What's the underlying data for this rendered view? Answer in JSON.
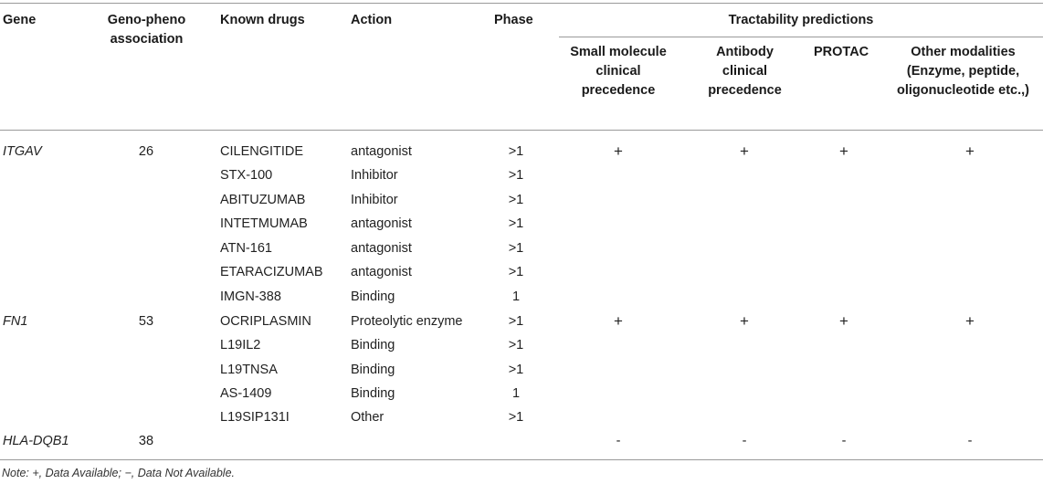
{
  "headers": {
    "gene": "Gene",
    "geno_pheno": "Geno-pheno association",
    "known_drugs": "Known drugs",
    "action": "Action",
    "phase": "Phase",
    "tractability": "Tractability predictions",
    "small_molecule": "Small molecule clinical precedence",
    "antibody": "Antibody clinical precedence",
    "protac": "PROTAC",
    "other": "Other modalities (Enzyme, peptide, oligonucleotide etc.,)"
  },
  "genes": [
    {
      "gene": "ITGAV",
      "association": "26",
      "tract": [
        "+",
        "+",
        "+",
        "+"
      ]
    },
    {
      "gene": "FN1",
      "association": "53",
      "tract": [
        "+",
        "+",
        "+",
        "+"
      ]
    },
    {
      "gene": "HLA-DQB1",
      "association": "38",
      "tract": [
        "-",
        "-",
        "-",
        "-"
      ]
    }
  ],
  "drugs": [
    {
      "drug": "CILENGITIDE",
      "action": "antagonist",
      "phase": ">1"
    },
    {
      "drug": "STX-100",
      "action": "Inhibitor",
      "phase": ">1"
    },
    {
      "drug": "ABITUZUMAB",
      "action": "Inhibitor",
      "phase": ">1"
    },
    {
      "drug": "INTETMUMAB",
      "action": "antagonist",
      "phase": ">1"
    },
    {
      "drug": "ATN-161",
      "action": "antagonist",
      "phase": ">1"
    },
    {
      "drug": "ETARACIZUMAB",
      "action": "antagonist",
      "phase": ">1"
    },
    {
      "drug": "IMGN-388",
      "action": "Binding",
      "phase": "1"
    },
    {
      "drug": "OCRIPLASMIN",
      "action": "Proteolytic enzyme",
      "phase": ">1"
    },
    {
      "drug": "L19IL2",
      "action": "Binding",
      "phase": ">1"
    },
    {
      "drug": "L19TNSA",
      "action": "Binding",
      "phase": ">1"
    },
    {
      "drug": "AS-1409",
      "action": "Binding",
      "phase": "1"
    },
    {
      "drug": "L19SIP131I",
      "action": "Other",
      "phase": ">1"
    }
  ],
  "note": "Note: +, Data Available; −, Data Not Available."
}
